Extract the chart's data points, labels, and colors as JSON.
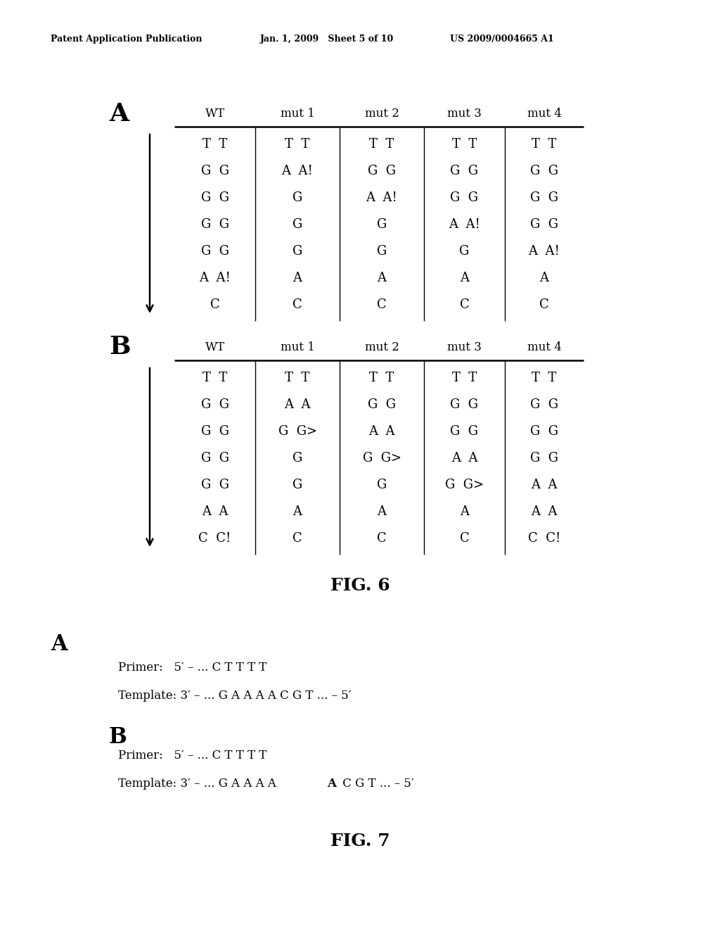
{
  "header_text_left": "Patent Application Publication",
  "header_text_mid": "Jan. 1, 2009   Sheet 5 of 10",
  "header_text_right": "US 2009/0004665 A1",
  "fig6_label": "FIG. 6",
  "fig7_label": "FIG. 7",
  "col_headers": [
    "WT",
    "mut 1",
    "mut 2",
    "mut 3",
    "mut 4"
  ],
  "fig6A_data": {
    "WT": [
      "T  T",
      "G  G",
      "G  G",
      "G  G",
      "G  G",
      "A  A!",
      "C"
    ],
    "mut1": [
      "T  T",
      "A  A!",
      "G",
      "G",
      "G",
      "A",
      "C"
    ],
    "mut2": [
      "T  T",
      "G  G",
      "A  A!",
      "G",
      "G",
      "A",
      "C"
    ],
    "mut3": [
      "T  T",
      "G  G",
      "G  G",
      "A  A!",
      "G",
      "A",
      "C"
    ],
    "mut4": [
      "T  T",
      "G  G",
      "G  G",
      "G  G",
      "A  A!",
      "A",
      "C"
    ]
  },
  "fig6B_data": {
    "WT": [
      "T  T",
      "G  G",
      "G  G",
      "G  G",
      "G  G",
      "A  A",
      "C  C!"
    ],
    "mut1": [
      "T  T",
      "A  A",
      "G  G>",
      "G",
      "G",
      "A",
      "C"
    ],
    "mut2": [
      "T  T",
      "G  G",
      "A  A",
      "G  G>",
      "G",
      "A",
      "C"
    ],
    "mut3": [
      "T  T",
      "G  G",
      "G  G",
      "A  A",
      "G  G>",
      "A",
      "C"
    ],
    "mut4": [
      "T  T",
      "G  G",
      "G  G",
      "G  G",
      "A  A",
      "A  A",
      "C  C!"
    ]
  },
  "fig7A_primer": "Primer:   5′ – ... C T T T T",
  "fig7A_template": "Template: 3′ – ... G A A A A C G T ... – 5′",
  "fig7B_primer": "Primer:   5′ – ... C T T T T",
  "fig7B_template_pre": "Template: 3′ – ... G A A A A ",
  "fig7B_template_bold": "A",
  "fig7B_template_post": " C G T ... – 5′"
}
